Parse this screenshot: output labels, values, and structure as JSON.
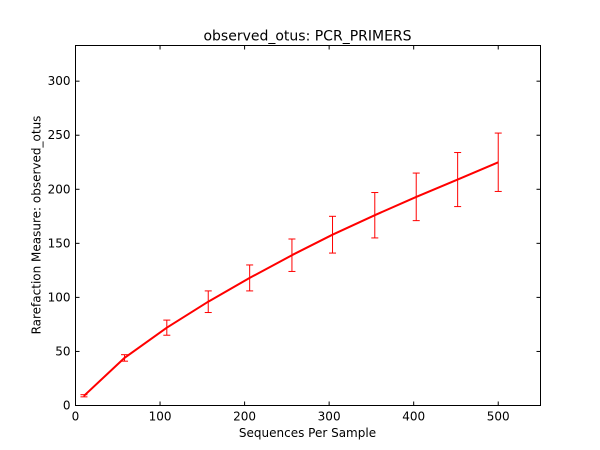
{
  "chart_data": {
    "type": "line",
    "title": "observed_otus: PCR_PRIMERS",
    "xlabel": "Sequences Per Sample",
    "ylabel": "Rarefaction Measure: observed_otus",
    "xlim": [
      0,
      550
    ],
    "ylim": [
      0,
      333
    ],
    "xticks": [
      0,
      100,
      200,
      300,
      400,
      500
    ],
    "yticks": [
      0,
      50,
      100,
      150,
      200,
      250,
      300
    ],
    "grid": false,
    "series": [
      {
        "color": "#ff0000",
        "x": [
          10,
          58,
          108,
          157,
          206,
          256,
          304,
          354,
          403,
          452,
          500
        ],
        "y": [
          9,
          44,
          72,
          96,
          118,
          139,
          158,
          176,
          193,
          209,
          225
        ],
        "err": [
          1,
          3,
          7,
          10,
          12,
          15,
          17,
          21,
          22,
          25,
          27
        ]
      }
    ]
  }
}
